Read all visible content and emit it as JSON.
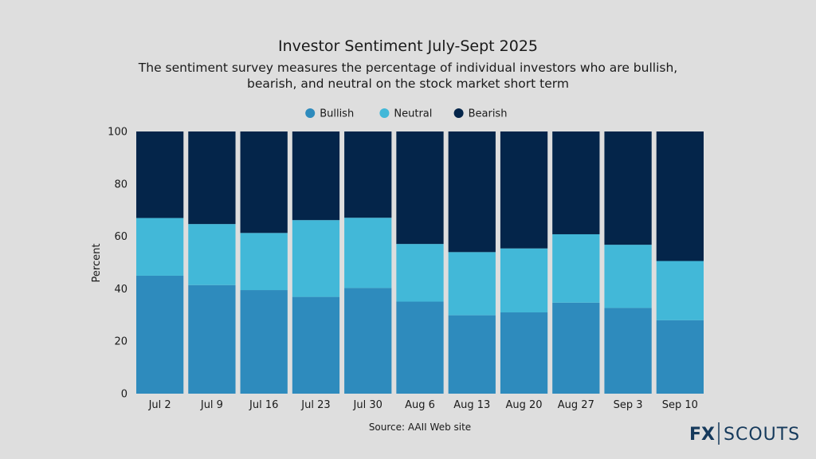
{
  "chart_data": {
    "type": "bar",
    "stacked": true,
    "title": "Investor Sentiment July-Sept 2025",
    "subtitle_lines": [
      "The sentiment survey measures the percentage of individual investors who are bullish,",
      "bearish, and neutral on the stock market short term"
    ],
    "xlabel": "",
    "ylabel": "Percent",
    "ylim": [
      0,
      100
    ],
    "yticks": [
      0,
      20,
      40,
      60,
      80,
      100
    ],
    "legend_position": "top-center",
    "grid": false,
    "categories": [
      "Jul 2",
      "Jul 9",
      "Jul 16",
      "Jul 23",
      "Jul 30",
      "Aug 6",
      "Aug 13",
      "Aug 20",
      "Aug 27",
      "Sep 3",
      "Sep 10"
    ],
    "series": [
      {
        "name": "Bullish",
        "color": "#2e8bbd",
        "values": [
          45.0,
          41.4,
          39.5,
          36.9,
          40.3,
          35.1,
          29.9,
          31.0,
          34.7,
          32.7,
          28.0
        ]
      },
      {
        "name": "Neutral",
        "color": "#42b8d8",
        "values": [
          22.0,
          23.3,
          21.8,
          29.3,
          26.8,
          22.0,
          24.1,
          24.4,
          26.1,
          24.1,
          22.6
        ]
      },
      {
        "name": "Bearish",
        "color": "#04254a",
        "values": [
          33.0,
          35.3,
          38.7,
          33.8,
          32.9,
          42.9,
          46.0,
          44.6,
          39.2,
          43.2,
          49.4
        ]
      }
    ],
    "source": "Source: AAII Web site"
  },
  "logo": {
    "left": "FX",
    "right": "SCOUTS",
    "color": "#163a5c"
  }
}
